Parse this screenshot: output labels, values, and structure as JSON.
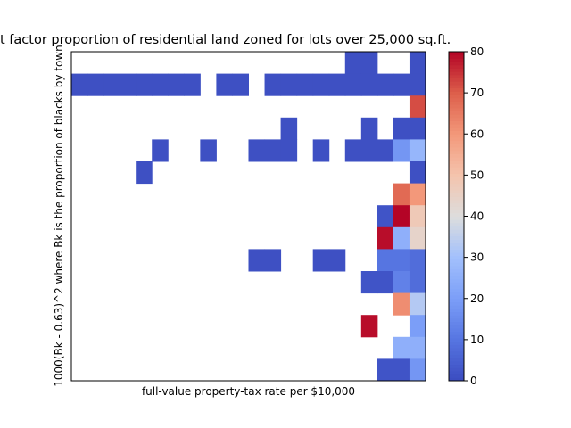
{
  "chart_data": {
    "type": "heatmap",
    "title": "t factor proportion of residential land zoned for lots over 25,000 sq.ft.",
    "xlabel": "full-value property-tax rate per $10,000",
    "ylabel": "1000(Bk - 0.63)^2 where Bk is the proportion of blacks by town",
    "colormap": "coolwarm",
    "zlim": [
      0,
      80
    ],
    "zticks": [
      0,
      10,
      20,
      30,
      40,
      50,
      60,
      70,
      80
    ],
    "values": [
      [
        null,
        null,
        null,
        null,
        null,
        null,
        null,
        null,
        null,
        null,
        null,
        null,
        null,
        null,
        null,
        null,
        null,
        1,
        1,
        null,
        null,
        1
      ],
      [
        1,
        1,
        1,
        1,
        1,
        1,
        1,
        1,
        null,
        1,
        1,
        null,
        1,
        1,
        1,
        1,
        1,
        1,
        1,
        1,
        1,
        1
      ],
      [
        null,
        null,
        null,
        null,
        null,
        null,
        null,
        null,
        null,
        null,
        null,
        null,
        null,
        null,
        null,
        null,
        null,
        null,
        null,
        null,
        null,
        72
      ],
      [
        null,
        null,
        null,
        null,
        null,
        null,
        null,
        null,
        null,
        null,
        null,
        null,
        null,
        1,
        null,
        null,
        null,
        null,
        1,
        null,
        1,
        1
      ],
      [
        null,
        null,
        null,
        null,
        null,
        1,
        null,
        null,
        1,
        null,
        null,
        1,
        1,
        1,
        null,
        1,
        null,
        1,
        1,
        1,
        18,
        27
      ],
      [
        null,
        null,
        null,
        null,
        1,
        null,
        null,
        null,
        null,
        null,
        null,
        null,
        null,
        null,
        null,
        null,
        null,
        null,
        null,
        null,
        null,
        1
      ],
      [
        null,
        null,
        null,
        null,
        null,
        null,
        null,
        null,
        null,
        null,
        null,
        null,
        null,
        null,
        null,
        null,
        null,
        null,
        null,
        null,
        68,
        60
      ],
      [
        null,
        null,
        null,
        null,
        null,
        null,
        null,
        null,
        null,
        null,
        null,
        null,
        null,
        null,
        null,
        null,
        null,
        null,
        null,
        2,
        80,
        48
      ],
      [
        null,
        null,
        null,
        null,
        null,
        null,
        null,
        null,
        null,
        null,
        null,
        null,
        null,
        null,
        null,
        null,
        null,
        null,
        null,
        79,
        25,
        44
      ],
      [
        null,
        null,
        null,
        null,
        null,
        null,
        null,
        null,
        null,
        null,
        null,
        1,
        1,
        null,
        null,
        1,
        1,
        null,
        null,
        10,
        10,
        8
      ],
      [
        null,
        null,
        null,
        null,
        null,
        null,
        null,
        null,
        null,
        null,
        null,
        null,
        null,
        null,
        null,
        null,
        null,
        null,
        2,
        2,
        13,
        8
      ],
      [
        null,
        null,
        null,
        null,
        null,
        null,
        null,
        null,
        null,
        null,
        null,
        null,
        null,
        null,
        null,
        null,
        null,
        null,
        null,
        null,
        62,
        33
      ],
      [
        null,
        null,
        null,
        null,
        null,
        null,
        null,
        null,
        null,
        null,
        null,
        null,
        null,
        null,
        null,
        null,
        null,
        null,
        79,
        null,
        null,
        20
      ],
      [
        null,
        null,
        null,
        null,
        null,
        null,
        null,
        null,
        null,
        null,
        null,
        null,
        null,
        null,
        null,
        null,
        null,
        null,
        null,
        null,
        25,
        25
      ],
      [
        null,
        null,
        null,
        null,
        null,
        null,
        null,
        null,
        null,
        null,
        null,
        null,
        null,
        null,
        null,
        null,
        null,
        null,
        null,
        2,
        2,
        18
      ]
    ]
  }
}
